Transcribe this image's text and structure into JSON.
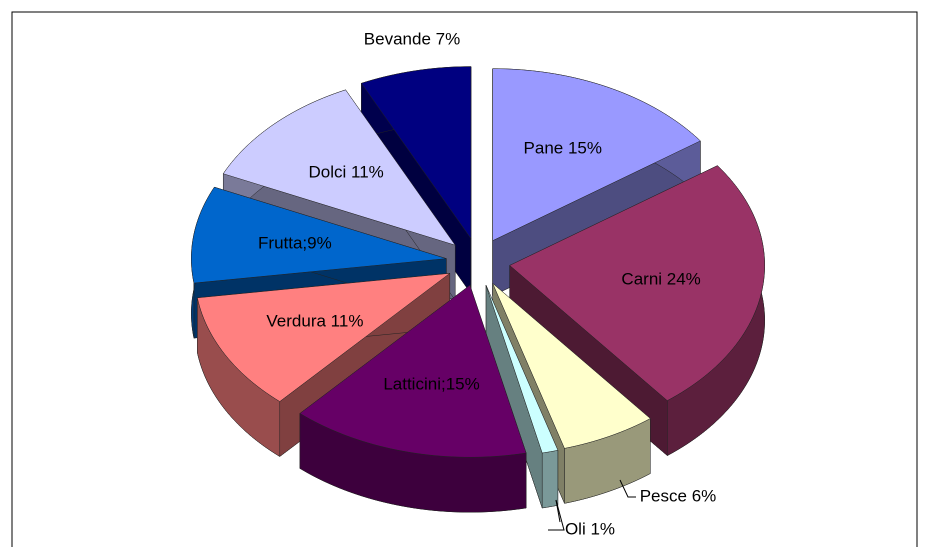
{
  "chart_data": {
    "type": "pie",
    "values": [
      15,
      24,
      6,
      1,
      15,
      11,
      9,
      11,
      7
    ],
    "value_labels": [
      "Pane 15%",
      "Carni 24%",
      "Pesce 6%",
      "Oli 1%",
      "Latticini;15%",
      "Verdura 11%",
      "Frutta;9%",
      "Dolci 11%",
      "Bevande 7%"
    ],
    "colors": [
      "#9999ff",
      "#993366",
      "#ffffcc",
      "#ccffff",
      "#660066",
      "#ff8080",
      "#0066cc",
      "#ccccff",
      "#000080"
    ]
  }
}
